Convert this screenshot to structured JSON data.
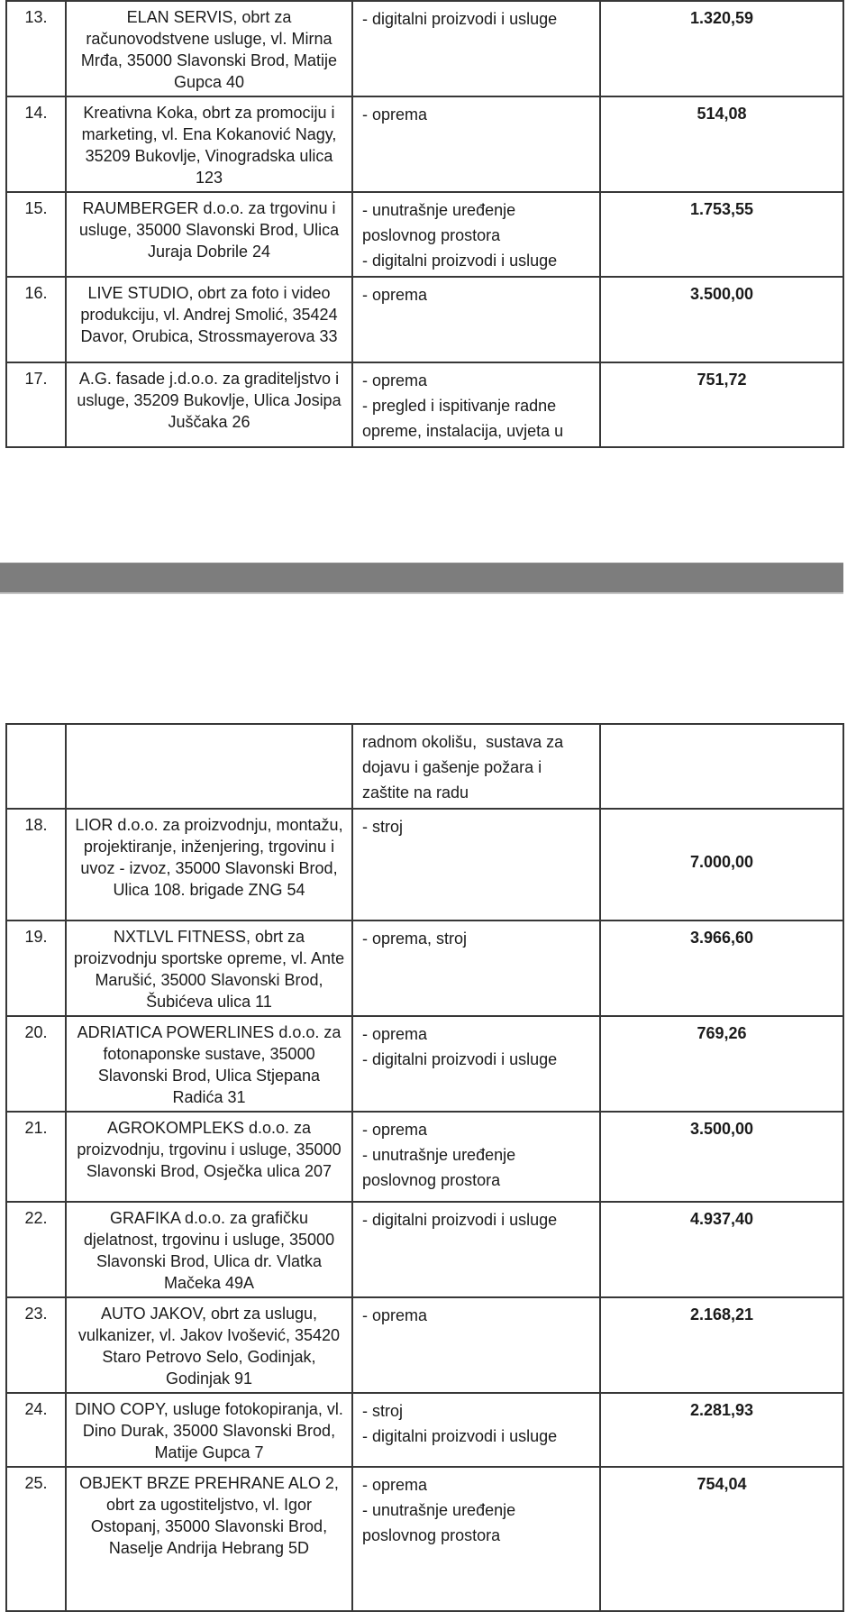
{
  "document": {
    "kind": "grant-recipients-table",
    "language": "hr",
    "text_color": "#1b1b1b",
    "border_color": "#373737"
  },
  "separator": {
    "name": "page-break-bar",
    "color": "#7d7d7d"
  },
  "tables": [
    {
      "rows": [
        {
          "num": "13.",
          "name": "ELAN SERVIS, obrt za računovodstvene usluge, vl. Mirna Mrđa, 35000 Slavonski Brod, Matije Gupca 40",
          "categories": [
            "- digitalni proizvodi i usluge"
          ],
          "amount": "1.320,59"
        },
        {
          "num": "14.",
          "name": "Kreativna Koka, obrt za promociju i marketing, vl. Ena Kokanović Nagy, 35209 Bukovlje, Vinogradska ulica 123",
          "categories": [
            "- oprema"
          ],
          "amount": "514,08"
        },
        {
          "num": "15.",
          "name": "RAUMBERGER d.o.o. za trgovinu i usluge, 35000 Slavonski Brod, Ulica Juraja Dobrile 24",
          "categories": [
            "- unutrašnje uređenje poslovnog prostora",
            "- digitalni proizvodi i usluge"
          ],
          "amount": "1.753,55"
        },
        {
          "num": "16.",
          "name": "LIVE STUDIO, obrt za foto i video produkciju, vl. Andrej Smolić, 35424 Davor, Orubica, Strossmayerova 33",
          "categories": [
            "- oprema"
          ],
          "amount": "3.500,00"
        },
        {
          "num": "17.",
          "name": "A.G. fasade j.d.o.o. za graditeljstvo i usluge, 35209 Bukovlje, Ulica Josipa Juščaka 26",
          "categories": [
            "- oprema",
            "- pregled i ispitivanje radne opreme, instalacija, uvjeta u"
          ],
          "amount": "751,72"
        }
      ]
    },
    {
      "rows": [
        {
          "num": "",
          "name": "",
          "categories": [
            "radnom okolišu,  sustava za dojavu i gašenje požara i zaštite na radu"
          ],
          "amount": ""
        },
        {
          "num": "18.",
          "name": "LIOR d.o.o. za proizvodnju, montažu, projektiranje, inženjering, trgovinu i uvoz - izvoz, 35000 Slavonski Brod, Ulica 108. brigade ZNG 54",
          "categories": [
            "- stroj"
          ],
          "amount": "7.000,00"
        },
        {
          "num": "19.",
          "name": "NXTLVL FITNESS, obrt za proizvodnju sportske opreme, vl. Ante Marušić, 35000 Slavonski Brod, Šubićeva ulica 11",
          "categories": [
            "- oprema, stroj"
          ],
          "amount": "3.966,60"
        },
        {
          "num": "20.",
          "name": "ADRIATICA POWERLINES d.o.o. za fotonaponske sustave, 35000 Slavonski Brod, Ulica Stjepana Radića 31",
          "categories": [
            "- oprema",
            "- digitalni proizvodi i usluge"
          ],
          "amount": "769,26"
        },
        {
          "num": "21.",
          "name": "AGROKOMPLEKS d.o.o. za proizvodnju, trgovinu i usluge, 35000 Slavonski Brod, Osječka ulica 207",
          "categories": [
            "- oprema",
            "- unutrašnje uređenje poslovnog prostora"
          ],
          "amount": "3.500,00"
        }
      ]
    },
    {
      "rows": [
        {
          "num": "22.",
          "name": "GRAFIKA d.o.o. za grafičku djelatnost, trgovinu i usluge, 35000 Slavonski Brod, Ulica dr. Vlatka Mačeka 49A",
          "categories": [
            "- digitalni proizvodi i usluge"
          ],
          "amount": "4.937,40"
        },
        {
          "num": "23.",
          "name": "AUTO JAKOV, obrt za uslugu, vulkanizer, vl. Jakov Ivošević, 35420 Staro Petrovo Selo, Godinjak, Godinjak 91",
          "categories": [
            "- oprema"
          ],
          "amount": "2.168,21"
        },
        {
          "num": "24.",
          "name": "DINO COPY, usluge fotokopiranja, vl. Dino Durak, 35000 Slavonski Brod, Matije Gupca 7",
          "categories": [
            "- stroj",
            "- digitalni proizvodi i usluge"
          ],
          "amount": "2.281,93"
        },
        {
          "num": "25.",
          "name": "OBJEKT BRZE PREHRANE ALO 2, obrt za ugostiteljstvo, vl. Igor Ostopanj, 35000 Slavonski Brod, Naselje Andrija Hebrang 5D",
          "categories": [
            "- oprema",
            "- unutrašnje uređenje poslovnog prostora"
          ],
          "amount": "754,04"
        }
      ]
    }
  ]
}
